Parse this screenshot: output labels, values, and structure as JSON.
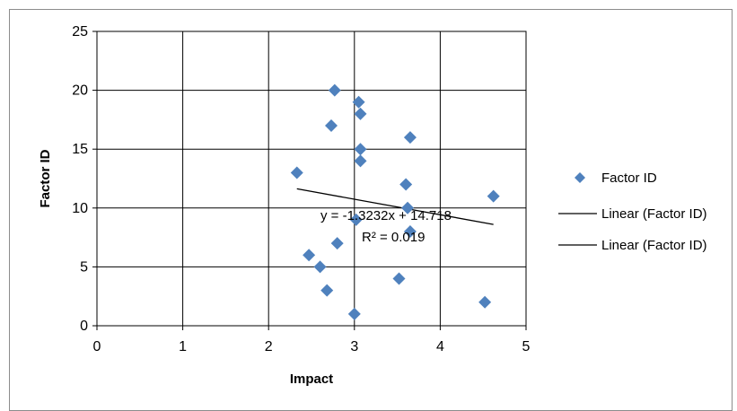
{
  "chart_data": {
    "type": "scatter",
    "xlabel": "Impact",
    "ylabel": "Factor ID",
    "xlim": [
      0,
      5
    ],
    "ylim": [
      0,
      25
    ],
    "x_ticks": [
      "0",
      "1",
      "2",
      "3",
      "4",
      "5"
    ],
    "y_ticks": [
      "0",
      "5",
      "10",
      "15",
      "20",
      "25"
    ],
    "grid": true,
    "legend_position": "right",
    "series": [
      {
        "name": "Factor ID",
        "color": "#4f81bd",
        "marker": "diamond",
        "points": [
          {
            "x": 3.0,
            "y": 1
          },
          {
            "x": 4.52,
            "y": 2
          },
          {
            "x": 2.68,
            "y": 3
          },
          {
            "x": 3.52,
            "y": 4
          },
          {
            "x": 2.6,
            "y": 5
          },
          {
            "x": 2.47,
            "y": 6
          },
          {
            "x": 2.8,
            "y": 7
          },
          {
            "x": 3.65,
            "y": 8
          },
          {
            "x": 3.02,
            "y": 9
          },
          {
            "x": 3.62,
            "y": 10
          },
          {
            "x": 4.62,
            "y": 11
          },
          {
            "x": 3.6,
            "y": 12
          },
          {
            "x": 2.33,
            "y": 13
          },
          {
            "x": 3.07,
            "y": 14
          },
          {
            "x": 3.07,
            "y": 15
          },
          {
            "x": 3.65,
            "y": 16
          },
          {
            "x": 2.73,
            "y": 17
          },
          {
            "x": 3.07,
            "y": 18
          },
          {
            "x": 3.05,
            "y": 19
          },
          {
            "x": 2.77,
            "y": 20
          }
        ]
      }
    ],
    "trendline": {
      "type": "linear",
      "slope": -1.3232,
      "intercept": 14.718,
      "x_range": [
        2.33,
        4.62
      ],
      "color": "#000000",
      "equation": "y = -1.3232x + 14.718",
      "r_squared": "R² = 0.019"
    },
    "legend": [
      {
        "label": "Factor ID",
        "kind": "marker"
      },
      {
        "label": "Linear (Factor ID)",
        "kind": "line"
      },
      {
        "label": "Linear (Factor ID)",
        "kind": "line"
      }
    ]
  }
}
